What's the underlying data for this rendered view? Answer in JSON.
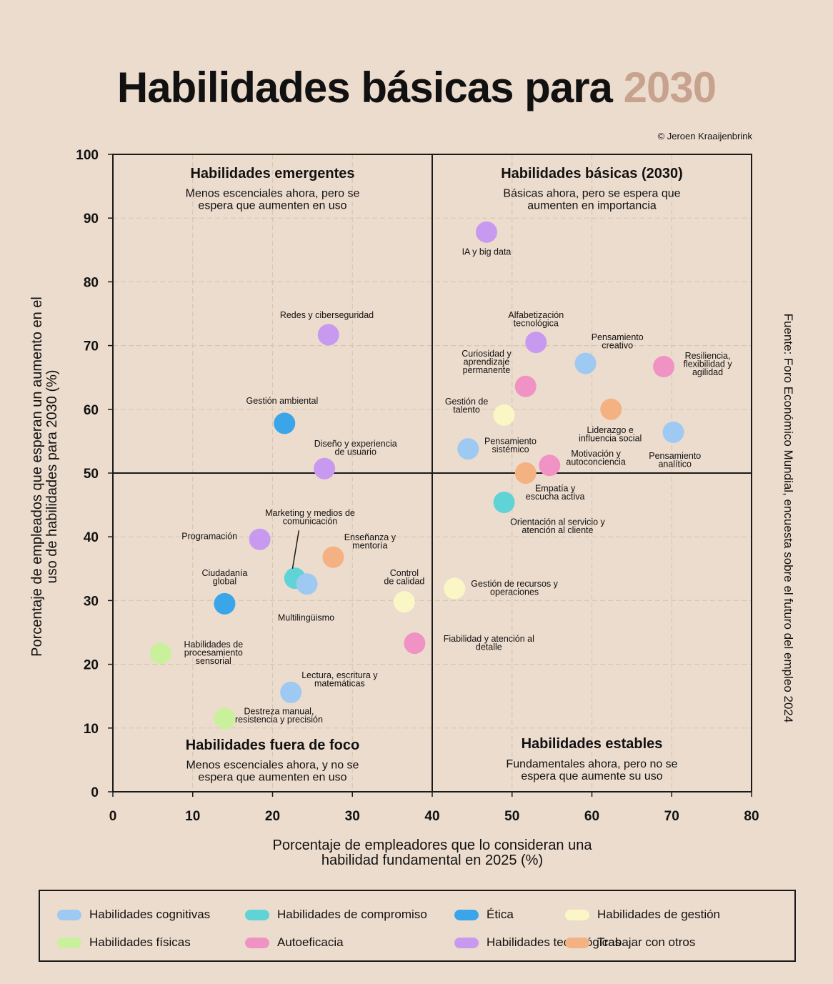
{
  "title": {
    "main": "Habilidades básicas para",
    "highlight": "2030"
  },
  "credit": "© Jeroen Kraaijenbrink",
  "source": "Fuente: Foro Económico Mundial, encuesta sobre el futuro del empleo 2024",
  "colors": {
    "background": "#ecdccd",
    "title_highlight": "#c7a38f",
    "cognitive": "#9ec9f2",
    "engagement": "#5fd3d6",
    "ethics": "#3aa5e8",
    "management": "#fbf6c6",
    "physical": "#c9f09a",
    "self_efficacy": "#f192c4",
    "technology": "#c79af0",
    "working_with_others": "#f4b182"
  },
  "chart_data": {
    "type": "scatter",
    "xlabel": [
      "Porcentaje de empleadores que lo consideran una",
      "habilidad fundamental en 2025 (%)"
    ],
    "ylabel": [
      "Porcentaje de empleados que esperan un aumento en el",
      "uso de habilidades para 2030 (%)"
    ],
    "xlim": [
      0,
      80
    ],
    "ylim": [
      0,
      100
    ],
    "xticks": [
      0,
      10,
      20,
      30,
      40,
      50,
      60,
      70,
      80
    ],
    "yticks": [
      0,
      10,
      20,
      30,
      40,
      50,
      60,
      70,
      80,
      90,
      100
    ],
    "grid": true,
    "divider": {
      "x": 40,
      "y": 50
    },
    "quadrants": [
      {
        "id": "emerging",
        "title": "Habilidades emergentes",
        "subtitle": [
          "Menos escenciales ahora, pero se",
          "espera que aumenten en uso"
        ],
        "x": 20,
        "y": 97,
        "subtitleY": 94
      },
      {
        "id": "core",
        "title": "Habilidades básicas (2030)",
        "subtitle": [
          "Básicas ahora, pero se espera que",
          "aumenten en importancia"
        ],
        "x": 60,
        "y": 97,
        "subtitleY": 94
      },
      {
        "id": "out-of-focus",
        "title": "Habilidades fuera de foco",
        "subtitle": [
          "Menos escenciales ahora, y no se",
          "espera que aumenten en uso"
        ],
        "x": 20,
        "y": 7.3,
        "subtitleY": 4.3
      },
      {
        "id": "stable",
        "title": "Habilidades estables",
        "subtitle": [
          "Fundamentales ahora, pero no se",
          "espera que aumente su uso"
        ],
        "x": 60,
        "y": 7.5,
        "subtitleY": 4.5
      }
    ],
    "legend": [
      {
        "key": "cognitive",
        "label": "Habilidades cognitivas"
      },
      {
        "key": "engagement",
        "label": "Habilidades de compromiso"
      },
      {
        "key": "ethics",
        "label": "Ética"
      },
      {
        "key": "management",
        "label": "Habilidades de gestión"
      },
      {
        "key": "physical",
        "label": "Habilidades físicas"
      },
      {
        "key": "self_efficacy",
        "label": "Autoeficacia"
      },
      {
        "key": "technology",
        "label": "Habilidades tecnológicas"
      },
      {
        "key": "working_with_others",
        "label": "Trabajar con otros"
      }
    ],
    "points": [
      {
        "label": [
          "IA y big data"
        ],
        "x": 46.8,
        "y": 87.8,
        "cat": "technology",
        "lx": 46.8,
        "ly": 84.7,
        "anchor": "middle"
      },
      {
        "label": [
          "Redes y ciberseguridad"
        ],
        "x": 27.0,
        "y": 71.7,
        "cat": "technology",
        "lx": 26.8,
        "ly": 74.8,
        "anchor": "middle"
      },
      {
        "label": [
          "Alfabetización",
          "tecnológica"
        ],
        "x": 53.0,
        "y": 70.5,
        "cat": "technology",
        "lx": 53.0,
        "ly": 74.8,
        "anchor": "middle"
      },
      {
        "label": [
          "Pensamiento",
          "creativo"
        ],
        "x": 59.2,
        "y": 67.2,
        "cat": "cognitive",
        "lx": 63.2,
        "ly": 71.3,
        "anchor": "middle"
      },
      {
        "label": [
          "Resiliencia,",
          "flexibilidad y",
          "agilidad"
        ],
        "x": 69.0,
        "y": 66.7,
        "cat": "self_efficacy",
        "lx": 74.5,
        "ly": 68.4,
        "anchor": "middle"
      },
      {
        "label": [
          "Curiosidad y",
          "aprendizaje",
          "permanente"
        ],
        "x": 51.7,
        "y": 63.6,
        "cat": "self_efficacy",
        "lx": 46.8,
        "ly": 68.7,
        "anchor": "middle"
      },
      {
        "label": [
          "Gestión ambiental"
        ],
        "x": 21.5,
        "y": 57.8,
        "cat": "ethics",
        "lx": 21.2,
        "ly": 61.3,
        "anchor": "middle"
      },
      {
        "label": [
          "Gestión de",
          "talento"
        ],
        "x": 49.0,
        "y": 59.1,
        "cat": "management",
        "lx": 44.3,
        "ly": 61.2,
        "anchor": "middle"
      },
      {
        "label": [
          "Liderazgo e",
          "influencia social"
        ],
        "x": 62.4,
        "y": 60.0,
        "cat": "working_with_others",
        "lx": 62.3,
        "ly": 56.7,
        "anchor": "middle"
      },
      {
        "label": [
          "Pensamiento",
          "analítico"
        ],
        "x": 70.2,
        "y": 56.4,
        "cat": "cognitive",
        "lx": 70.4,
        "ly": 52.7,
        "anchor": "middle"
      },
      {
        "label": [
          "Pensamiento",
          "sistémico"
        ],
        "x": 44.5,
        "y": 53.8,
        "cat": "cognitive",
        "lx": 49.8,
        "ly": 55.0,
        "anchor": "middle"
      },
      {
        "label": [
          "Diseño y experiencia",
          "de usuario"
        ],
        "x": 26.5,
        "y": 50.7,
        "cat": "technology",
        "lx": 30.4,
        "ly": 54.6,
        "anchor": "middle"
      },
      {
        "label": [
          "Motivación y",
          "autoconciencia"
        ],
        "x": 54.7,
        "y": 51.2,
        "cat": "self_efficacy",
        "lx": 60.5,
        "ly": 53.0,
        "anchor": "middle"
      },
      {
        "label": [
          "Empatía y",
          "escucha activa"
        ],
        "x": 51.7,
        "y": 50.0,
        "cat": "working_with_others",
        "lx": 55.4,
        "ly": 47.6,
        "anchor": "middle"
      },
      {
        "label": [
          "Orientación al servicio y",
          "atención al cliente"
        ],
        "x": 49.0,
        "y": 45.4,
        "cat": "engagement",
        "lx": 55.7,
        "ly": 42.3,
        "anchor": "middle"
      },
      {
        "label": [
          "Programación"
        ],
        "x": 18.4,
        "y": 39.6,
        "cat": "technology",
        "lx": 12.1,
        "ly": 40.1,
        "anchor": "middle"
      },
      {
        "label": [
          "Marketing y medios de",
          "comunicación"
        ],
        "x": 22.8,
        "y": 33.5,
        "cat": "engagement",
        "lx": 24.7,
        "ly": 43.7,
        "anchor": "middle"
      },
      {
        "label": [
          "Enseñanza y",
          "mentoría"
        ],
        "x": 27.6,
        "y": 36.8,
        "cat": "working_with_others",
        "lx": 32.2,
        "ly": 39.9,
        "anchor": "middle"
      },
      {
        "label": [
          "Multilingüismo"
        ],
        "x": 24.3,
        "y": 32.6,
        "cat": "cognitive",
        "lx": 24.2,
        "ly": 27.3,
        "anchor": "middle"
      },
      {
        "label": [
          "Control",
          "de calidad"
        ],
        "x": 36.5,
        "y": 29.8,
        "cat": "management",
        "lx": 36.5,
        "ly": 34.3,
        "anchor": "middle"
      },
      {
        "label": [
          "Gestión de recursos y",
          "operaciones"
        ],
        "x": 42.8,
        "y": 31.9,
        "cat": "management",
        "lx": 50.3,
        "ly": 32.6,
        "anchor": "middle"
      },
      {
        "label": [
          "Ciudadanía",
          "global"
        ],
        "x": 14.0,
        "y": 29.5,
        "cat": "ethics",
        "lx": 14.0,
        "ly": 34.3,
        "anchor": "middle"
      },
      {
        "label": [
          "Fiabilidad y atención al",
          "detalle"
        ],
        "x": 37.8,
        "y": 23.3,
        "cat": "self_efficacy",
        "lx": 47.1,
        "ly": 24.0,
        "anchor": "middle"
      },
      {
        "label": [
          "Habilidades de",
          "procesamiento",
          "sensorial"
        ],
        "x": 6.0,
        "y": 21.7,
        "cat": "physical",
        "lx": 12.6,
        "ly": 23.1,
        "anchor": "middle"
      },
      {
        "label": [
          "Lectura, escritura y",
          "matemáticas"
        ],
        "x": 22.3,
        "y": 15.6,
        "cat": "cognitive",
        "lx": 28.4,
        "ly": 18.3,
        "anchor": "middle"
      },
      {
        "label": [
          "Destreza manual,",
          "resistencia y precisión"
        ],
        "x": 14.0,
        "y": 11.5,
        "cat": "physical",
        "lx": 20.8,
        "ly": 12.6,
        "anchor": "middle"
      }
    ],
    "leader_line": {
      "from": [
        23.3,
        41.0
      ],
      "to": [
        22.5,
        35.0
      ]
    }
  }
}
